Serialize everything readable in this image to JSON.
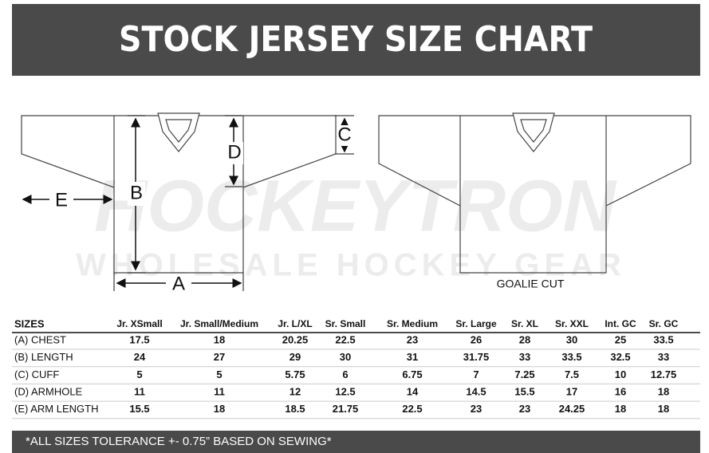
{
  "header": {
    "title": "STOCK JERSEY SIZE CHART"
  },
  "diagram": {
    "watermark": {
      "brand": "HOCKEYTRON",
      "tagline": "WHOLESALE HOCKEY GEAR"
    },
    "labels": {
      "a": "A",
      "b": "B",
      "c": "C",
      "d": "D",
      "e": "E"
    },
    "goalie_caption": "GOALIE CUT"
  },
  "table": {
    "header": [
      "SIZES",
      "Jr. XSmall",
      "Jr. Small/Medium",
      "Jr. L/XL",
      "Sr. Small",
      "Sr. Medium",
      "Sr. Large",
      "Sr. XL",
      "Sr. XXL",
      "Int. GC",
      "Sr. GC"
    ],
    "rows": [
      [
        "(A) CHEST",
        "17.5",
        "18",
        "20.25",
        "22.5",
        "23",
        "26",
        "28",
        "30",
        "25",
        "33.5"
      ],
      [
        "(B) LENGTH",
        "24",
        "27",
        "29",
        "30",
        "31",
        "31.75",
        "33",
        "33.5",
        "32.5",
        "33"
      ],
      [
        "(C) CUFF",
        "5",
        "5",
        "5.75",
        "6",
        "6.75",
        "7",
        "7.25",
        "7.5",
        "10",
        "12.75"
      ],
      [
        "(D) ARMHOLE",
        "11",
        "11",
        "12",
        "12.5",
        "14",
        "14.5",
        "15.5",
        "17",
        "16",
        "18"
      ],
      [
        "(E) ARM LENGTH",
        "15.5",
        "18",
        "18.5",
        "21.75",
        "22.5",
        "23",
        "23",
        "24.25",
        "18",
        "18"
      ]
    ]
  },
  "footer": {
    "note": "*ALL SIZES TOLERANCE +- 0.75” BASED ON SEWING*"
  }
}
